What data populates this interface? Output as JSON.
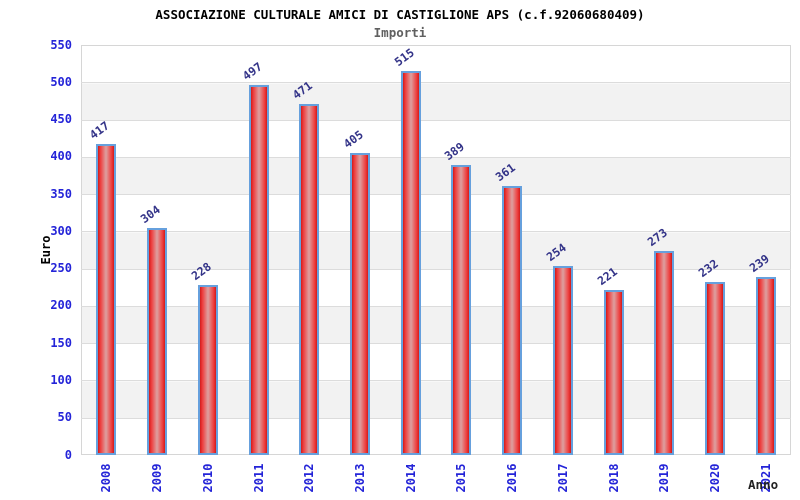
{
  "chart_data": {
    "type": "bar",
    "title": "ASSOCIAZIONE CULTURALE AMICI DI CASTIGLIONE APS (c.f.92060680409)",
    "subtitle": "Importi",
    "xlabel": "Anno",
    "ylabel": "Euro",
    "categories": [
      "2008",
      "2009",
      "2010",
      "2011",
      "2012",
      "2013",
      "2014",
      "2015",
      "2016",
      "2017",
      "2018",
      "2019",
      "2020",
      "2021"
    ],
    "values": [
      417,
      304,
      228,
      497,
      471,
      405,
      515,
      389,
      361,
      254,
      221,
      273,
      232,
      239
    ],
    "ylim": [
      0,
      550
    ],
    "ytick_step": 50,
    "grid": true,
    "legend": "none",
    "band_fill": "alternating horizontal 50-unit bands",
    "colors": {
      "bar_edge": "#d31a1a",
      "bar_mid": "#dda0a0",
      "bar_border": "#66a0dd",
      "axis_tick_label": "#2424d8",
      "value_label": "#333388",
      "gridline": "#dcdcdc",
      "band": "#f2f2f2",
      "plot_border": "#d6d6d6"
    }
  }
}
